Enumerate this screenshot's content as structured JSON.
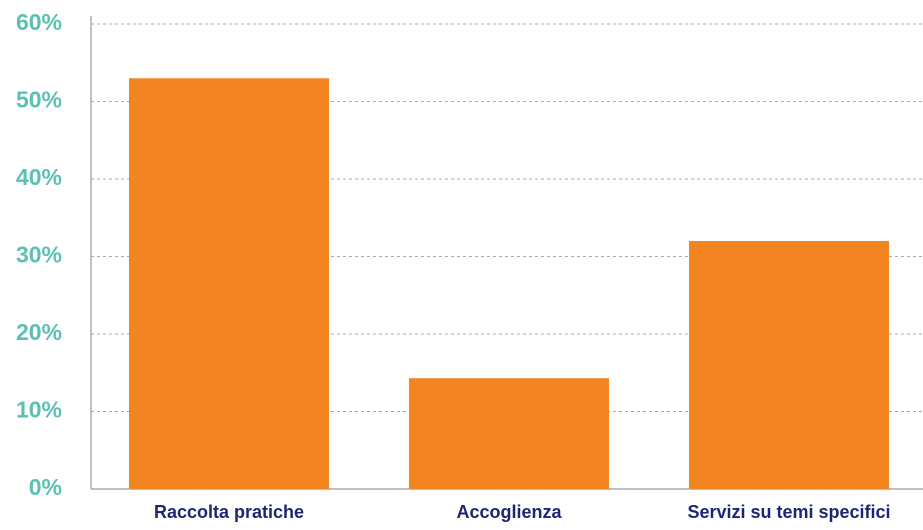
{
  "chart_data": {
    "type": "bar",
    "categories": [
      "Raccolta pratiche",
      "Accoglienza",
      "Servizi su temi specifici"
    ],
    "values": [
      53,
      14.3,
      32
    ],
    "color": "#f28522",
    "ylim": [
      0,
      60
    ],
    "yticks": [
      {
        "value": 0,
        "label": "0%"
      },
      {
        "value": 10,
        "label": "10%"
      },
      {
        "value": 20,
        "label": "20%"
      },
      {
        "value": 30,
        "label": "30%"
      },
      {
        "value": 40,
        "label": "40%"
      },
      {
        "value": 50,
        "label": "50%"
      },
      {
        "value": 60,
        "label": "60%"
      }
    ],
    "grid": true
  }
}
